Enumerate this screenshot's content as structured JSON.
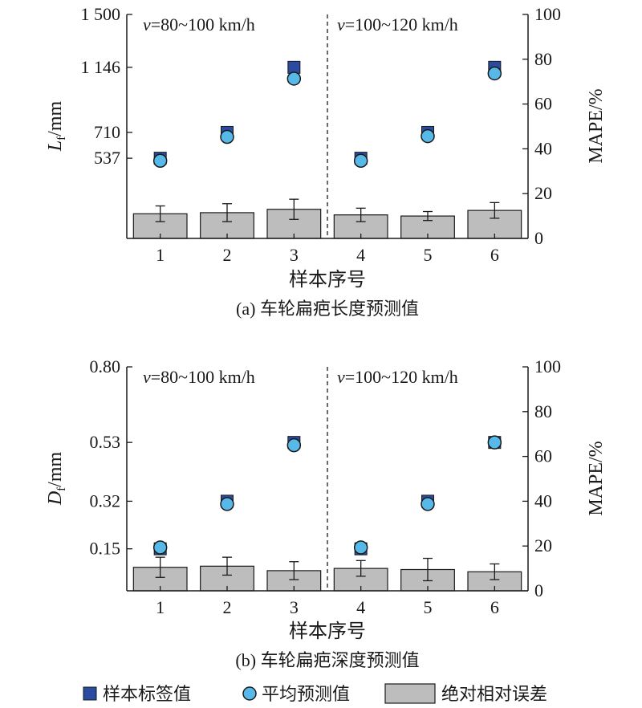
{
  "chart_data": [
    {
      "type": "scatter",
      "caption": "(a) 车轮扁疤长度预测值",
      "xlabel": "样本序号",
      "ylabel_left": "L_f/mm",
      "ylabel_left_main": "L",
      "ylabel_left_sub": "f",
      "ylabel_left_unit": "/mm",
      "ylabel_right": "MAPE/%",
      "categories": [
        "1",
        "2",
        "3",
        "4",
        "5",
        "6"
      ],
      "ylim_left": [
        0,
        1500
      ],
      "yticks_left": [
        537,
        710,
        1146,
        1500
      ],
      "ytick_labels_left": [
        "537",
        "710",
        "1 146",
        "1 500"
      ],
      "ylim_right": [
        0,
        100
      ],
      "yticks_right": [
        0,
        20,
        40,
        60,
        80,
        100
      ],
      "regions": [
        {
          "prefix": "v",
          "text": "=80~100 km/h"
        },
        {
          "prefix": "v",
          "text": "=100~120 km/h"
        }
      ],
      "series": [
        {
          "name": "样本标签值",
          "axis": "left",
          "values": [
            537,
            710,
            1146,
            537,
            710,
            1146
          ]
        },
        {
          "name": "平均预测值",
          "axis": "left",
          "values": [
            520,
            680,
            1070,
            520,
            685,
            1105
          ]
        },
        {
          "name": "绝对相对误差",
          "axis": "right",
          "values": [
            11,
            11.5,
            13,
            10.5,
            10,
            12.5
          ],
          "error": [
            3.5,
            4,
            4.5,
            3,
            2,
            3.5
          ]
        }
      ],
      "grid": false
    },
    {
      "type": "scatter",
      "caption": "(b) 车轮扁疤深度预测值",
      "xlabel": "样本序号",
      "ylabel_left": "D_f/mm",
      "ylabel_left_main": "D",
      "ylabel_left_sub": "f",
      "ylabel_left_unit": "/mm",
      "ylabel_right": "MAPE/%",
      "categories": [
        "1",
        "2",
        "3",
        "4",
        "5",
        "6"
      ],
      "ylim_left": [
        0,
        0.8
      ],
      "yticks_left": [
        0.15,
        0.32,
        0.53,
        0.8
      ],
      "ytick_labels_left": [
        "0.15",
        "0.32",
        "0.53",
        "0.80"
      ],
      "ylim_right": [
        0,
        100
      ],
      "yticks_right": [
        0,
        20,
        40,
        60,
        80,
        100
      ],
      "regions": [
        {
          "prefix": "v",
          "text": "=80~100 km/h"
        },
        {
          "prefix": "v",
          "text": "=100~120 km/h"
        }
      ],
      "series": [
        {
          "name": "样本标签值",
          "axis": "left",
          "values": [
            0.15,
            0.32,
            0.53,
            0.15,
            0.32,
            0.53
          ]
        },
        {
          "name": "平均预测值",
          "axis": "left",
          "values": [
            0.155,
            0.31,
            0.52,
            0.155,
            0.31,
            0.53
          ]
        },
        {
          "name": "绝对相对误差",
          "axis": "right",
          "values": [
            10.5,
            11,
            9,
            10,
            9.5,
            8.5
          ],
          "error": [
            4.5,
            4,
            4,
            3.5,
            5,
            3.5
          ]
        }
      ],
      "grid": false
    }
  ],
  "legend": {
    "position": "bottom",
    "items": [
      {
        "label": "样本标签值",
        "marker": "square",
        "color": "#2b4ba0"
      },
      {
        "label": "平均预测值",
        "marker": "circle",
        "color": "#56b9e8"
      },
      {
        "label": "绝对相对误差",
        "marker": "bar",
        "color": "#bdbdbd"
      }
    ]
  },
  "colors": {
    "label_marker": "#2b4ba0",
    "pred_marker": "#56b9e8",
    "bar_fill": "#bdbdbd",
    "axis": "#1a1a1a"
  }
}
